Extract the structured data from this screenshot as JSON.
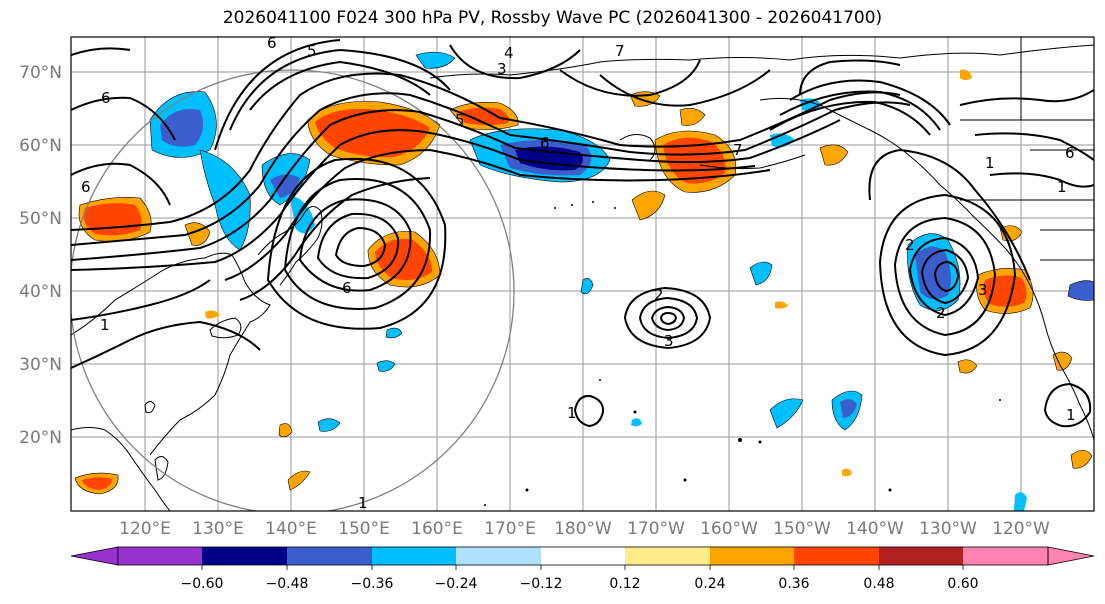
{
  "title": "2026041100 F024 300 hPa PV, Rossby Wave PC (2026041300 - 2026041700)",
  "lat_labels": [
    "70°N",
    "60°N",
    "50°N",
    "40°N",
    "30°N",
    "20°N"
  ],
  "lon_labels": [
    "120°E",
    "130°E",
    "140°E",
    "150°E",
    "160°E",
    "170°E",
    "180°W",
    "170°W",
    "160°W",
    "150°W",
    "140°W",
    "130°W",
    "120°W"
  ],
  "colorbar": {
    "ticks": [
      "−0.60",
      "−0.48",
      "−0.36",
      "−0.24",
      "−0.12",
      "0.12",
      "0.24",
      "0.36",
      "0.48",
      "0.60"
    ],
    "colors": [
      "#9932cc",
      "#00008b",
      "#3a5fcd",
      "#00bfff",
      "#b0e2ff",
      "#ffffff",
      "#ffec8b",
      "#ffa500",
      "#ff4500",
      "#b22222",
      "#ff83b0"
    ]
  },
  "contour_labels": [
    "6",
    "5",
    "4",
    "3",
    "7",
    "6",
    "5",
    "6",
    "7",
    "6",
    "1",
    "6",
    "1",
    "6",
    "2",
    "1",
    "2",
    "3",
    "1",
    "2",
    "3",
    "1",
    "1"
  ]
}
